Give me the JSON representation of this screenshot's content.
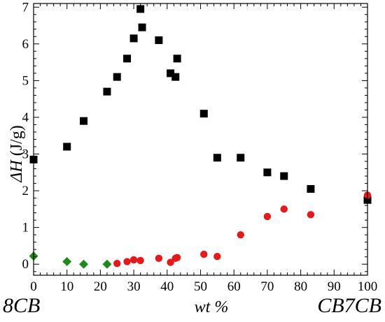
{
  "chart_data": {
    "type": "scatter",
    "xlabel": "wt %",
    "ylabel": "ΔH (J/g)",
    "ylabel_main": "ΔH",
    "ylabel_unit": " (J/g)",
    "xlim": [
      0,
      100
    ],
    "ylim": [
      -0.3,
      7.1
    ],
    "x_ticks": [
      0,
      10,
      20,
      30,
      40,
      50,
      60,
      70,
      80,
      90,
      100
    ],
    "y_ticks": [
      0,
      1,
      2,
      3,
      4,
      5,
      6,
      7
    ],
    "left_label": "8CB",
    "right_label": "CB7CB",
    "grid": false,
    "series": [
      {
        "marker": "square",
        "color": "#000000",
        "points": [
          [
            0,
            2.85
          ],
          [
            10,
            3.2
          ],
          [
            15,
            3.9
          ],
          [
            22,
            4.7
          ],
          [
            25,
            5.1
          ],
          [
            28,
            5.6
          ],
          [
            30,
            6.15
          ],
          [
            32,
            6.95
          ],
          [
            32.5,
            6.45
          ],
          [
            37.5,
            6.1
          ],
          [
            41,
            5.2
          ],
          [
            42.5,
            5.1
          ],
          [
            43,
            5.6
          ],
          [
            51,
            4.1
          ],
          [
            55,
            2.9
          ],
          [
            62,
            2.9
          ],
          [
            70,
            2.5
          ],
          [
            75,
            2.4
          ],
          [
            83,
            2.05
          ],
          [
            100,
            1.75
          ]
        ]
      },
      {
        "marker": "circle",
        "color": "#e31a1c",
        "points": [
          [
            25,
            0.02
          ],
          [
            28,
            0.07
          ],
          [
            30,
            0.12
          ],
          [
            32,
            0.1
          ],
          [
            37.5,
            0.16
          ],
          [
            41,
            0.05
          ],
          [
            42.5,
            0.16
          ],
          [
            43,
            0.18
          ],
          [
            51,
            0.27
          ],
          [
            55,
            0.21
          ],
          [
            62,
            0.8
          ],
          [
            70,
            1.3
          ],
          [
            75,
            1.5
          ],
          [
            83,
            1.35
          ],
          [
            100,
            1.88
          ]
        ]
      },
      {
        "marker": "diamond",
        "color": "#1e8a1e",
        "points": [
          [
            0,
            0.22
          ],
          [
            10,
            0.07
          ],
          [
            15,
            0.0
          ],
          [
            22,
            0.0
          ]
        ]
      }
    ]
  }
}
